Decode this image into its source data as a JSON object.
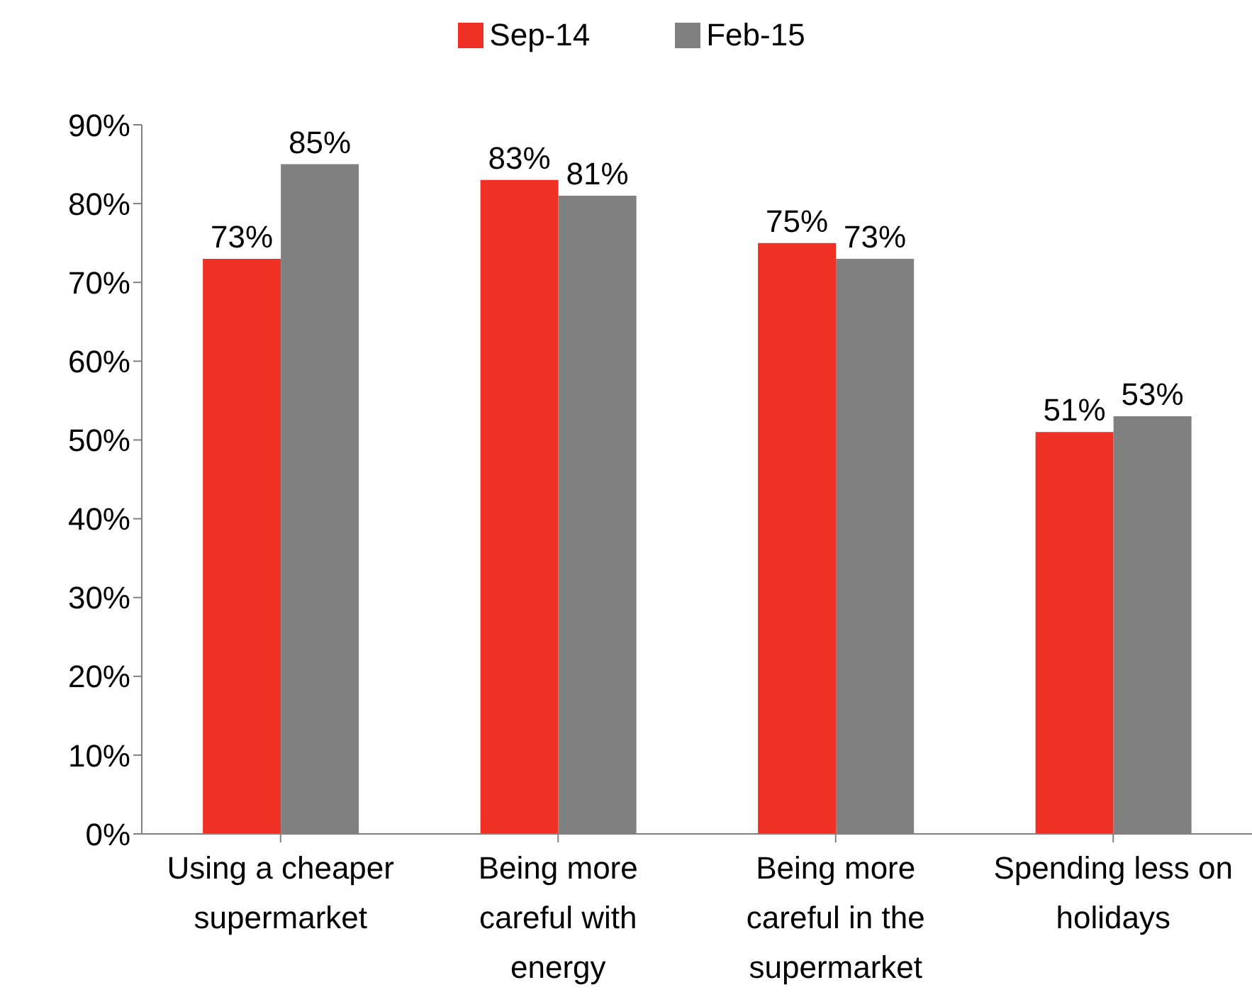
{
  "chart_data": {
    "type": "bar",
    "categories": [
      "Using a cheaper supermarket",
      "Being more careful with energy",
      "Being more careful in the supermarket",
      "Spending less on holidays"
    ],
    "series": [
      {
        "name": "Sep-14",
        "color": "#ee3124",
        "values": [
          73,
          83,
          75,
          51
        ]
      },
      {
        "name": "Feb-15",
        "color": "#808080",
        "values": [
          85,
          81,
          73,
          53
        ]
      }
    ],
    "ylim": [
      0,
      90
    ],
    "yticks": [
      {
        "value": 0,
        "label": "0%"
      },
      {
        "value": 10,
        "label": "10%"
      },
      {
        "value": 20,
        "label": "20%"
      },
      {
        "value": 30,
        "label": "30%"
      },
      {
        "value": 40,
        "label": "40%"
      },
      {
        "value": 50,
        "label": "50%"
      },
      {
        "value": 60,
        "label": "60%"
      },
      {
        "value": 70,
        "label": "70%"
      },
      {
        "value": 80,
        "label": "80%"
      },
      {
        "value": 90,
        "label": "90%"
      }
    ],
    "value_labels": [
      [
        "73%",
        "83%",
        "75%",
        "51%"
      ],
      [
        "85%",
        "81%",
        "73%",
        "53%"
      ]
    ],
    "grid": false,
    "legend": "top"
  }
}
